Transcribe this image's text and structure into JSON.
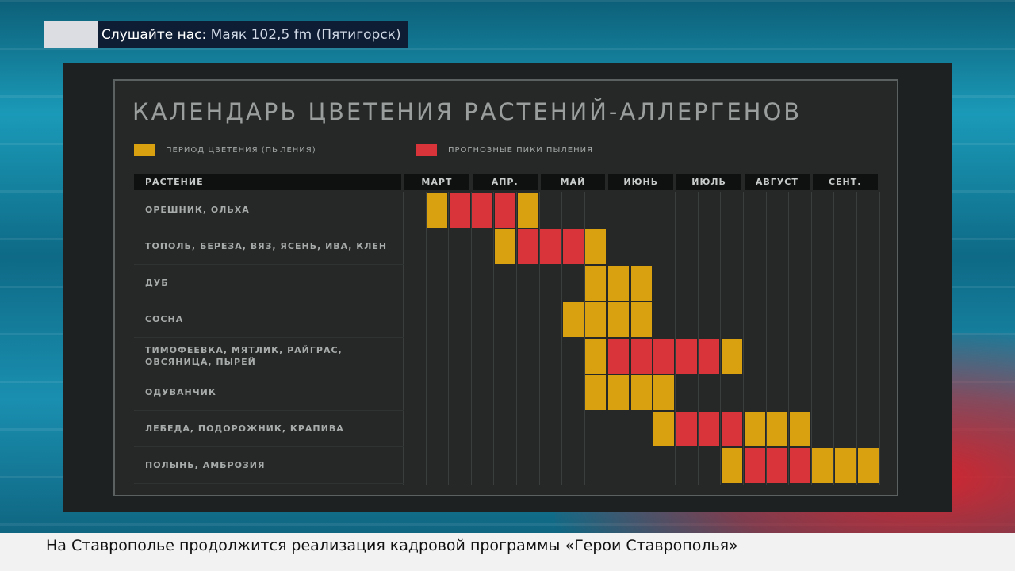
{
  "top_bar": {
    "prefix": "Слушайте нас:",
    "text": "Маяк 102,5 fm (Пятигорск)"
  },
  "footer": {
    "ticker": "На Ставрополье продолжится реализация кадровой программы «Герои Ставрополья»"
  },
  "chart_data": {
    "type": "table",
    "title": "КАЛЕНДАРЬ ЦВЕТЕНИЯ РАСТЕНИЙ-АЛЛЕРГЕНОВ",
    "legend": [
      {
        "key": "b",
        "label": "ПЕРИОД ЦВЕТЕНИЯ (ПЫЛЕНИЯ)",
        "color": "#d9a00f"
      },
      {
        "key": "p",
        "label": "ПРОГНОЗНЫЕ ПИКИ ПЫЛЕНИЯ",
        "color": "#d8343a"
      }
    ],
    "plant_header": "РАСТЕНИЕ",
    "months": [
      "МАРТ",
      "АПР.",
      "МАЙ",
      "ИЮНЬ",
      "ИЮЛЬ",
      "АВГУСТ",
      "СЕНТ."
    ],
    "periods_per_month": 3,
    "rows": [
      {
        "plant": "ОРЕШНИК, ОЛЬХА",
        "cells": [
          "",
          "b",
          "p",
          "p",
          "p",
          "b",
          "",
          "",
          "",
          "",
          "",
          "",
          "",
          "",
          "",
          "",
          "",
          "",
          "",
          "",
          ""
        ]
      },
      {
        "plant": "ТОПОЛЬ, БЕРЕЗА, ВЯЗ, ЯСЕНЬ, ИВА, КЛЕН",
        "cells": [
          "",
          "",
          "",
          "",
          "b",
          "p",
          "p",
          "p",
          "b",
          "",
          "",
          "",
          "",
          "",
          "",
          "",
          "",
          "",
          "",
          "",
          ""
        ]
      },
      {
        "plant": "ДУБ",
        "cells": [
          "",
          "",
          "",
          "",
          "",
          "",
          "",
          "",
          "b",
          "b",
          "b",
          "",
          "",
          "",
          "",
          "",
          "",
          "",
          "",
          "",
          ""
        ]
      },
      {
        "plant": "СОСНА",
        "cells": [
          "",
          "",
          "",
          "",
          "",
          "",
          "",
          "b",
          "b",
          "b",
          "b",
          "",
          "",
          "",
          "",
          "",
          "",
          "",
          "",
          "",
          ""
        ]
      },
      {
        "plant": "ТИМОФЕЕВКА, МЯТЛИК, РАЙГРАС, ОВСЯНИЦА, ПЫРЕЙ",
        "cells": [
          "",
          "",
          "",
          "",
          "",
          "",
          "",
          "",
          "b",
          "p",
          "p",
          "p",
          "p",
          "p",
          "b",
          "",
          "",
          "",
          "",
          "",
          ""
        ]
      },
      {
        "plant": "ОДУВАНЧИК",
        "cells": [
          "",
          "",
          "",
          "",
          "",
          "",
          "",
          "",
          "b",
          "b",
          "b",
          "b",
          "",
          "",
          "",
          "",
          "",
          "",
          "",
          "",
          ""
        ]
      },
      {
        "plant": "ЛЕБЕДА, ПОДОРОЖНИК, КРАПИВА",
        "cells": [
          "",
          "",
          "",
          "",
          "",
          "",
          "",
          "",
          "",
          "",
          "",
          "b",
          "p",
          "p",
          "p",
          "b",
          "b",
          "b",
          "",
          "",
          ""
        ]
      },
      {
        "plant": "ПОЛЫНЬ, АМБРОЗИЯ",
        "cells": [
          "",
          "",
          "",
          "",
          "",
          "",
          "",
          "",
          "",
          "",
          "",
          "",
          "",
          "",
          "b",
          "p",
          "p",
          "p",
          "b",
          "b",
          "b"
        ]
      }
    ]
  }
}
